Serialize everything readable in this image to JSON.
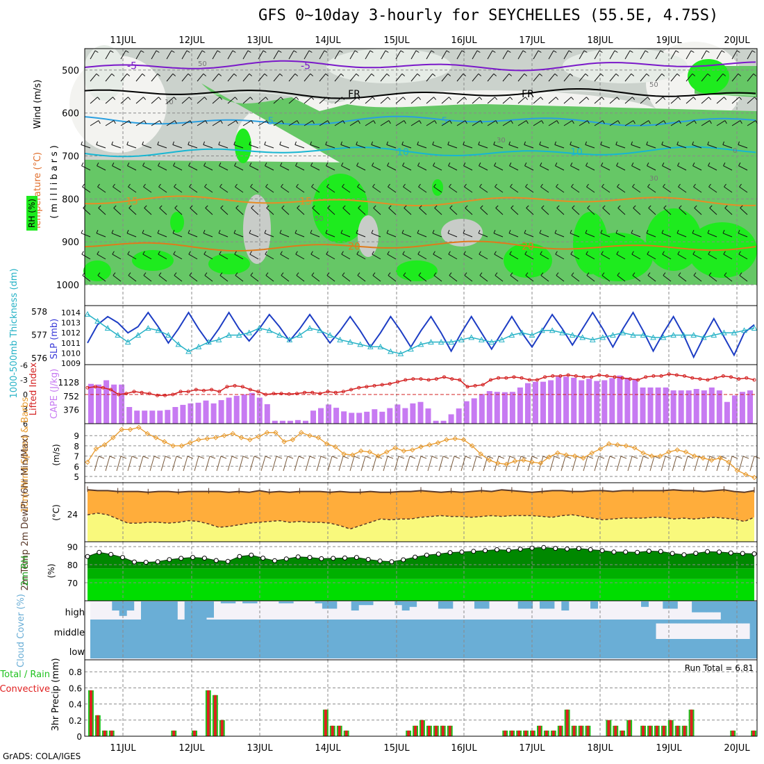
{
  "title": "GFS 0~10day 3-hourly for SEYCHELLES (55.5E, 4.75S)",
  "footer": "GrADS: COLA/IGES",
  "dates": [
    "11JUL",
    "12JUL",
    "13JUL",
    "14JUL",
    "15JUL",
    "16JUL",
    "17JUL",
    "18JUL",
    "19JUL",
    "20JUL"
  ],
  "colors": {
    "sky_blue": "#6aaed6",
    "pale": "#f4f2f8",
    "orange_fill": "#ffad3b",
    "yellow_fill": "#f9f97c",
    "green_dark": "#008800",
    "green_mid": "#00b000",
    "green_bright": "#00dd00",
    "cape_purple": "#c77af2",
    "slp_blue": "#1d3dc4",
    "thick_cyan": "#26b2c6",
    "li_red": "#d32020",
    "wind_orange": "#e89a2c"
  },
  "chart_data": [
    {
      "type": "heatmap",
      "panel": "upper-air",
      "ylabel_wind": "Wind (m/s)",
      "ylabel_temp": "Temperature (°C)",
      "ylabel_rh": "RH (%)",
      "ylabel_units": "(millibars)",
      "y_ticks": [
        "500",
        "600",
        "700",
        "800",
        "900",
        "1000"
      ],
      "ylim": [
        1000,
        450
      ],
      "temperature_contours": [
        {
          "label": "-5",
          "level": 490
        },
        {
          "label": "FR",
          "level": 555
        },
        {
          "label": "5",
          "level": 618
        },
        {
          "label": "10",
          "level": 690
        },
        {
          "label": "15",
          "level": 805
        },
        {
          "label": "20",
          "level": 910
        }
      ],
      "rh_labels": [
        "50",
        "10",
        "30",
        "50",
        "30",
        "0",
        "50"
      ]
    },
    {
      "type": "line",
      "panel": "slp-thickness",
      "ylabel_left": "1000-500mb Thickness (dm)",
      "ylabel_right": "SLP (mb)",
      "thickness_ticks": [
        "576",
        "577",
        "578"
      ],
      "slp_ticks": [
        "1009",
        "1010",
        "1011",
        "1012",
        "1013",
        "1014"
      ],
      "series": [
        {
          "name": "SLP (mb)",
          "values": [
            1011.0,
            1012.8,
            1013.6,
            1013.0,
            1012.0,
            1012.6,
            1014.0,
            1012.6,
            1011.0,
            1012.4,
            1014.0,
            1012.4,
            1011.0,
            1012.4,
            1014.0,
            1012.4,
            1011.2,
            1012.4,
            1013.8,
            1012.6,
            1011.2,
            1012.4,
            1013.8,
            1012.4,
            1011.0,
            1012.2,
            1013.6,
            1012.2,
            1010.6,
            1012.0,
            1013.6,
            1012.2,
            1010.6,
            1012.2,
            1013.6,
            1012.0,
            1010.2,
            1012.0,
            1013.6,
            1012.0,
            1010.4,
            1012.0,
            1013.6,
            1012.0,
            1010.6,
            1012.2,
            1013.8,
            1012.4,
            1010.8,
            1012.4,
            1014.0,
            1012.4,
            1010.6,
            1012.4,
            1014.0,
            1012.2,
            1010.2,
            1012.0,
            1013.6,
            1011.8,
            1009.6,
            1011.6,
            1013.4,
            1011.6,
            1009.8,
            1012.0,
            1012.8
          ]
        },
        {
          "name": "Thickness (dm)",
          "values": [
            577.9,
            577.6,
            577.3,
            577.0,
            576.7,
            577.0,
            577.3,
            577.2,
            577.0,
            576.6,
            576.3,
            576.5,
            576.7,
            576.8,
            577.0,
            577.0,
            577.1,
            577.3,
            577.2,
            577.0,
            576.8,
            577.0,
            577.3,
            577.2,
            577.0,
            576.8,
            576.7,
            576.6,
            576.5,
            576.5,
            576.3,
            576.2,
            576.4,
            576.6,
            576.7,
            576.7,
            576.7,
            576.8,
            576.9,
            576.8,
            576.7,
            576.8,
            577.0,
            577.1,
            577.0,
            577.2,
            577.2,
            577.1,
            577.0,
            576.9,
            576.8,
            576.9,
            577.0,
            577.1,
            577.0,
            577.0,
            576.9,
            576.9,
            577.0,
            577.0,
            577.0,
            576.9,
            577.0,
            577.1,
            577.1,
            577.2,
            577.3
          ]
        }
      ]
    },
    {
      "type": "bar",
      "panel": "cape-li",
      "ylabel_left": "Lifted Index",
      "ylabel_right": "CAPE (J/kg)",
      "li_ticks": [
        "-6",
        "-3",
        "0",
        "3",
        "6"
      ],
      "cape_ticks": [
        "376",
        "752",
        "1128"
      ],
      "series": [
        {
          "name": "CAPE (J/kg)",
          "values": [
            1100,
            1080,
            1200,
            1080,
            1080,
            460,
            360,
            360,
            360,
            360,
            380,
            460,
            520,
            560,
            580,
            640,
            560,
            650,
            720,
            770,
            810,
            850,
            720,
            540,
            80,
            80,
            80,
            100,
            80,
            360,
            430,
            530,
            440,
            340,
            300,
            300,
            330,
            400,
            330,
            430,
            530,
            430,
            560,
            600,
            420,
            80,
            80,
            260,
            420,
            620,
            700,
            820,
            900,
            880,
            870,
            880,
            1000,
            1120,
            1160,
            1160,
            1200,
            1300,
            1300,
            1270,
            1200,
            1240,
            1180,
            1200,
            1260,
            1330,
            1270,
            1240,
            1000,
            1000,
            1000,
            1000,
            920,
            920,
            920,
            960,
            920,
            1000,
            920,
            600,
            780,
            880,
            920
          ]
        },
        {
          "name": "Lifted Index",
          "values": [
            -1.4,
            -1.6,
            -1.4,
            -1.0,
            0.0,
            -0.2,
            -0.6,
            -0.4,
            -0.2,
            0.2,
            0.2,
            0.0,
            -0.6,
            -0.6,
            -1.0,
            -0.8,
            -1.0,
            -0.6,
            -1.6,
            -1.8,
            -1.6,
            -1.0,
            -0.6,
            0.0,
            -0.2,
            -0.2,
            -0.1,
            -0.2,
            -0.4,
            -0.4,
            -0.2,
            -0.6,
            -0.4,
            -0.6,
            -1.0,
            -1.4,
            -1.6,
            -1.8,
            -2.0,
            -2.2,
            -2.6,
            -3.0,
            -3.2,
            -3.2,
            -3.0,
            -3.2,
            -3.6,
            -3.2,
            -3.0,
            -1.6,
            -1.8,
            -2.0,
            -3.0,
            -3.4,
            -3.4,
            -3.6,
            -3.4,
            -3.0,
            -3.0,
            -3.6,
            -3.8,
            -3.8,
            -4.0,
            -3.8,
            -3.6,
            -3.6,
            -4.0,
            -3.8,
            -3.6,
            -3.4,
            -3.2,
            -3.0,
            -3.6,
            -3.8,
            -3.8,
            -4.2,
            -4.0,
            -3.8,
            -3.4,
            -3.2,
            -3.0,
            -3.4,
            -3.8,
            -3.6,
            -3.2,
            -3.4,
            -3.0
          ]
        }
      ]
    },
    {
      "type": "line",
      "panel": "wind10m",
      "ylabel": "10m Wind Speed & Barbs",
      "yunit": "(m/s)",
      "y_ticks": [
        "5",
        "6",
        "7",
        "8",
        "9"
      ],
      "values": [
        6.4,
        7.7,
        8.1,
        8.8,
        9.6,
        9.6,
        9.8,
        9.2,
        8.8,
        8.4,
        8.0,
        8.0,
        8.3,
        8.6,
        8.7,
        8.8,
        9.0,
        9.2,
        8.8,
        8.6,
        8.9,
        9.3,
        9.3,
        8.4,
        8.6,
        9.3,
        9.0,
        8.8,
        8.2,
        7.9,
        7.2,
        7.1,
        7.5,
        7.4,
        7.0,
        7.4,
        7.8,
        7.5,
        7.6,
        7.9,
        8.1,
        8.3,
        8.6,
        8.7,
        8.6,
        8.0,
        7.2,
        6.6,
        6.3,
        6.2,
        6.5,
        6.6,
        6.4,
        6.3,
        6.9,
        7.3,
        7.1,
        7.0,
        6.8,
        7.3,
        7.7,
        8.2,
        8.1,
        8.0,
        7.8,
        7.3,
        7.0,
        7.0,
        7.4,
        7.6,
        7.4,
        7.0,
        6.8,
        6.6,
        6.8,
        6.4,
        5.6,
        5.2,
        4.9
      ]
    },
    {
      "type": "area",
      "panel": "temp2m",
      "ylabel": "2m Temp 2m DewPt (6hr Min/Max)",
      "yunit": "(°C)",
      "y_ticks": [
        "24"
      ],
      "series": [
        {
          "name": "2m Temp",
          "values": [
            26.9,
            26.8,
            26.8,
            26.7,
            26.7,
            26.7,
            26.6,
            26.7,
            26.7,
            26.6,
            26.7,
            26.7,
            26.7,
            26.7,
            26.6,
            26.7,
            26.6,
            26.8,
            26.6,
            26.7,
            26.6,
            26.7,
            26.7,
            26.7,
            26.6,
            26.7,
            26.6,
            26.6,
            26.7,
            26.6,
            26.6,
            26.7,
            26.7,
            26.8,
            26.7,
            26.6,
            26.7,
            26.6,
            26.7,
            26.8,
            26.7,
            26.9,
            26.8,
            26.7,
            26.6,
            26.7,
            26.8,
            26.8,
            26.7,
            26.7,
            26.8,
            26.8,
            26.7,
            26.8,
            26.8,
            26.8,
            26.8,
            26.8,
            26.9,
            26.8,
            26.8,
            26.7,
            26.8,
            26.9,
            26.7,
            26.6,
            26.8
          ]
        },
        {
          "name": "2m DewPt",
          "values": [
            23.9,
            24.1,
            23.9,
            23.4,
            22.9,
            22.9,
            23.0,
            23.0,
            22.9,
            23.0,
            23.2,
            23.1,
            22.8,
            22.4,
            22.5,
            22.7,
            22.9,
            23.0,
            23.1,
            23.2,
            23.0,
            23.1,
            23.0,
            23.0,
            22.9,
            22.6,
            22.2,
            22.6,
            23.0,
            23.4,
            23.3,
            23.4,
            23.4,
            23.6,
            23.7,
            23.8,
            23.7,
            23.7,
            23.6,
            23.7,
            23.8,
            23.7,
            23.8,
            23.8,
            23.8,
            23.7,
            23.6,
            23.8,
            23.9,
            23.7,
            23.5,
            23.3,
            23.4,
            23.5,
            23.5,
            23.5,
            23.6,
            23.6,
            23.4,
            23.5,
            23.4,
            23.5,
            23.6,
            23.5,
            23.4,
            23.1,
            23.6
          ]
        }
      ]
    },
    {
      "type": "area",
      "panel": "rh2m",
      "ylabel": "2m RH",
      "yunit": "(%)",
      "y_ticks": [
        "70",
        "80",
        "90"
      ],
      "ylim": [
        60,
        92
      ],
      "values": [
        84.5,
        86.8,
        85.7,
        84.0,
        81.5,
        81.3,
        81.6,
        82.8,
        83.5,
        84.0,
        83.6,
        82.3,
        81.8,
        84.5,
        85.3,
        83.6,
        82.2,
        83.2,
        84.3,
        84.0,
        83.3,
        83.5,
        83.7,
        84.0,
        82.9,
        82.0,
        81.6,
        82.7,
        84.2,
        85.3,
        85.9,
        86.7,
        87.0,
        87.4,
        87.8,
        88.3,
        88.0,
        88.6,
        89.2,
        89.5,
        89.0,
        88.7,
        89.0,
        88.3,
        87.8,
        87.0,
        87.0,
        86.8,
        87.5,
        87.3,
        86.2,
        85.5,
        86.3,
        87.2,
        87.0,
        86.5,
        86.2,
        86.0
      ]
    },
    {
      "type": "bar",
      "panel": "cloud",
      "ylabel": "Cloud Cover (%)",
      "row_labels": [
        "high",
        "middle",
        "low"
      ],
      "series": [
        {
          "name": "high",
          "values": [
            0,
            0,
            0,
            50,
            80,
            50,
            0,
            100,
            100,
            100,
            100,
            100,
            0,
            100,
            100,
            100,
            90,
            0,
            10,
            10,
            0,
            10,
            10,
            0,
            0,
            0,
            10,
            10,
            0,
            0,
            0,
            10,
            40,
            40,
            0,
            0,
            50,
            20,
            20,
            0,
            0,
            0,
            20,
            50,
            30,
            0,
            0,
            0,
            40,
            40,
            0,
            0,
            0,
            40,
            40,
            0,
            0,
            0,
            0,
            40,
            40,
            0,
            40,
            40,
            0,
            50,
            0,
            0,
            0,
            40,
            0,
            0,
            0,
            0,
            0,
            0,
            30,
            0,
            0,
            40,
            40,
            0,
            0,
            60,
            60,
            60,
            60,
            100,
            100,
            100,
            100,
            100
          ]
        },
        {
          "name": "middle",
          "values": [
            100,
            100,
            100,
            100,
            100,
            100,
            100,
            100,
            100,
            100,
            100,
            100,
            100,
            100,
            100,
            100,
            100,
            100,
            100,
            100,
            100,
            100,
            100,
            100,
            100,
            100,
            100,
            100,
            100,
            100,
            100,
            100,
            100,
            100,
            100,
            100,
            100,
            100,
            100,
            100,
            100,
            100,
            100,
            100,
            100,
            100,
            100,
            100,
            100,
            100,
            100,
            100,
            100,
            100,
            100,
            100,
            100,
            100,
            100,
            100,
            100,
            100,
            100,
            100,
            100,
            100,
            100,
            100,
            100,
            100,
            100,
            100,
            100,
            100,
            100,
            100,
            100,
            100,
            20,
            20,
            20,
            20,
            20,
            20,
            20,
            20,
            20,
            20,
            20,
            20,
            20,
            100
          ]
        },
        {
          "name": "low",
          "values": [
            100,
            100,
            100,
            100,
            100,
            100,
            100,
            100,
            100,
            100,
            100,
            100,
            100,
            100,
            100,
            100,
            100,
            100,
            100,
            100,
            100,
            100,
            100,
            100,
            100,
            100,
            100,
            100,
            100,
            100,
            100,
            100,
            100,
            100,
            100,
            100,
            100,
            100,
            100,
            100,
            100,
            100,
            100,
            100,
            100,
            100,
            100,
            100,
            100,
            100,
            100,
            100,
            100,
            100,
            100,
            100,
            100,
            100,
            100,
            100,
            100,
            100,
            100,
            100,
            100,
            100,
            100,
            100,
            100,
            100,
            100,
            100,
            100,
            100,
            100,
            100,
            100,
            100,
            100,
            100,
            100,
            100,
            100,
            100,
            100,
            100,
            100,
            100,
            100,
            100,
            100,
            100
          ]
        }
      ]
    },
    {
      "type": "bar",
      "panel": "precip",
      "ylabel": "3hr Precip (mm)",
      "legend_total": "Total / Rain",
      "legend_conv": "Convective",
      "run_total": "Run Total = 6.81",
      "y_ticks": [
        "0",
        "0.2",
        "0.4",
        "0.6",
        "0.8"
      ],
      "ylim": [
        0,
        0.95
      ],
      "values": [
        0.57,
        0.26,
        0.07,
        0.07,
        0,
        0,
        0,
        0,
        0,
        0,
        0,
        0,
        0.07,
        0,
        0,
        0.07,
        0,
        0.57,
        0.51,
        0.2,
        0,
        0,
        0,
        0,
        0,
        0,
        0,
        0,
        0,
        0,
        0,
        0,
        0,
        0,
        0.33,
        0.13,
        0.13,
        0.07,
        0,
        0,
        0,
        0,
        0,
        0,
        0,
        0,
        0.07,
        0.13,
        0.2,
        0.13,
        0.13,
        0.13,
        0.13,
        0,
        0,
        0,
        0,
        0,
        0,
        0,
        0.07,
        0.07,
        0.07,
        0.07,
        0.07,
        0.13,
        0.07,
        0.07,
        0.13,
        0.33,
        0.13,
        0.13,
        0.13,
        0,
        0,
        0.2,
        0.13,
        0.07,
        0.2,
        0,
        0.13,
        0.13,
        0.13,
        0.13,
        0.2,
        0.13,
        0.13,
        0.33,
        0,
        0,
        0,
        0,
        0,
        0.07,
        0,
        0,
        0.07
      ]
    }
  ]
}
